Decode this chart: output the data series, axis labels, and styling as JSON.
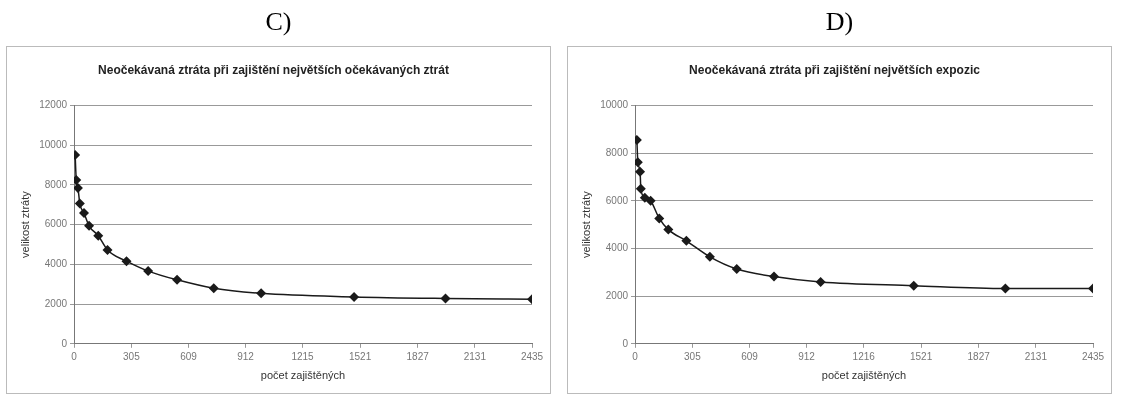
{
  "chart_data": [
    {
      "type": "line",
      "title": "Neočekávaná ztráta při zajištění největších očekávaných ztrát",
      "annotations": [
        "C)"
      ],
      "xlabel": "počet zajištěných",
      "ylabel": "velikost ztráty",
      "marker": "diamond",
      "grid": "y",
      "line_style": "solid",
      "legend": false,
      "xlim": [
        0,
        2435
      ],
      "xticks": [
        0,
        305,
        609,
        912,
        1215,
        1521,
        1827,
        2131,
        2435
      ],
      "ylim": [
        0,
        12000
      ],
      "yticks": [
        0,
        2000,
        4000,
        6000,
        8000,
        10000,
        12000
      ],
      "series": [
        {
          "color": "#1a1a1a",
          "x": [
            6,
            12,
            21,
            31,
            53,
            80,
            129,
            178,
            279,
            394,
            548,
            743,
            995,
            1489,
            1975,
            2435
          ],
          "values": [
            9500,
            8240,
            7840,
            7060,
            6580,
            5940,
            5440,
            4720,
            4160,
            3660,
            3220,
            2800,
            2540,
            2360,
            2280,
            2240
          ]
        }
      ]
    },
    {
      "type": "line",
      "title": "Neočekávaná ztráta při zajištění největších expozic",
      "annotations": [
        "D)"
      ],
      "xlabel": "počet zajištěných",
      "ylabel": "velikost ztráty",
      "marker": "diamond",
      "grid": "y",
      "line_style": "solid",
      "legend": false,
      "xlim": [
        0,
        2435
      ],
      "xticks": [
        0,
        305,
        609,
        912,
        1216,
        1521,
        1827,
        2131,
        2435
      ],
      "ylim": [
        0,
        10000
      ],
      "yticks": [
        0,
        2000,
        4000,
        6000,
        8000,
        10000
      ],
      "series": [
        {
          "color": "#1a1a1a",
          "x": [
            10,
            15,
            27,
            31,
            52,
            83,
            129,
            177,
            273,
            398,
            541,
            739,
            987,
            1482,
            1969,
            2435
          ],
          "values": [
            8550,
            7620,
            7220,
            6500,
            6130,
            6000,
            5260,
            4790,
            4320,
            3650,
            3140,
            2820,
            2590,
            2440,
            2320,
            2320
          ]
        }
      ]
    }
  ]
}
